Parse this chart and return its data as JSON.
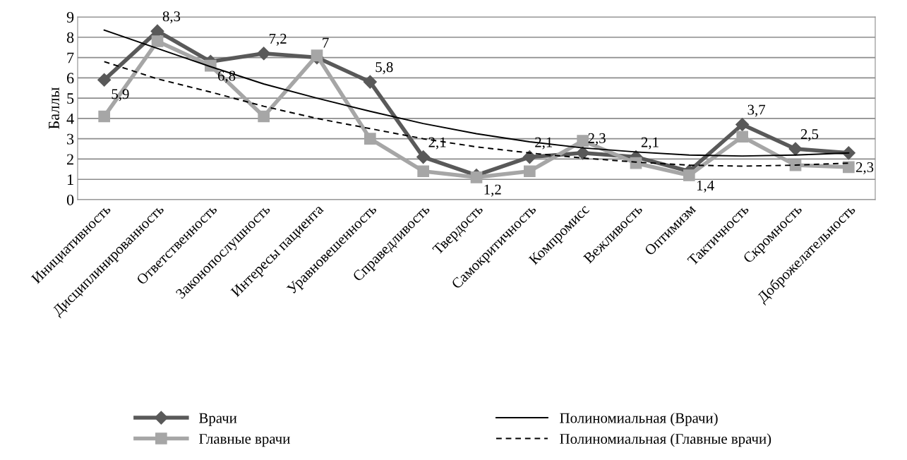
{
  "chart_data": {
    "type": "line",
    "ylabel": "Баллы",
    "categories": [
      "Инициативность",
      "Дисциплинированность",
      "Ответственность",
      "Законопослушность",
      "Интересы пациента",
      "Уравновешенность",
      "Справедливость",
      "Твердость",
      "Самокритичность",
      "Компромисс",
      "Вежливость",
      "Оптимизм",
      "Тактичность",
      "Скромность",
      "Доброжелательность"
    ],
    "series": [
      {
        "name": "Врачи",
        "color": "#595959",
        "marker": "diamond",
        "line_style": "solid",
        "values": [
          5.9,
          8.3,
          6.8,
          7.2,
          7,
          5.8,
          2.1,
          1.2,
          2.1,
          2.3,
          2.1,
          1.4,
          3.7,
          2.5,
          2.3
        ],
        "value_labels": [
          "5,9",
          "8,3",
          "6,8",
          "7,2",
          "7",
          "5,8",
          "2,1",
          "1,2",
          "2,1",
          "2,3",
          "2,1",
          "1,4",
          "3,7",
          "2,5",
          "2,3"
        ]
      },
      {
        "name": "Главные врачи",
        "color": "#a6a6a6",
        "marker": "square",
        "line_style": "solid",
        "values": [
          4.1,
          7.8,
          6.6,
          4.1,
          7.1,
          3.0,
          1.4,
          1.1,
          1.4,
          2.9,
          1.8,
          1.2,
          3.1,
          1.7,
          1.6
        ]
      },
      {
        "name": "Полиномиальная (Врачи)",
        "color": "#000000",
        "marker": "none",
        "line_style": "solid",
        "values": [
          8.35,
          7.45,
          6.55,
          5.7,
          5.0,
          4.35,
          3.75,
          3.25,
          2.85,
          2.55,
          2.35,
          2.2,
          2.15,
          2.2,
          2.3
        ]
      },
      {
        "name": "Полиномиальная (Главные врачи)",
        "color": "#000000",
        "marker": "none",
        "line_style": "dashed",
        "values": [
          6.8,
          5.95,
          5.3,
          4.6,
          4.0,
          3.5,
          3.0,
          2.6,
          2.3,
          2.05,
          1.85,
          1.7,
          1.65,
          1.7,
          1.8
        ]
      }
    ],
    "ylim": [
      0,
      9
    ],
    "yticks": [
      0,
      1,
      2,
      3,
      4,
      5,
      6,
      7,
      8,
      9
    ],
    "grid": "y",
    "legend": "bottom"
  }
}
